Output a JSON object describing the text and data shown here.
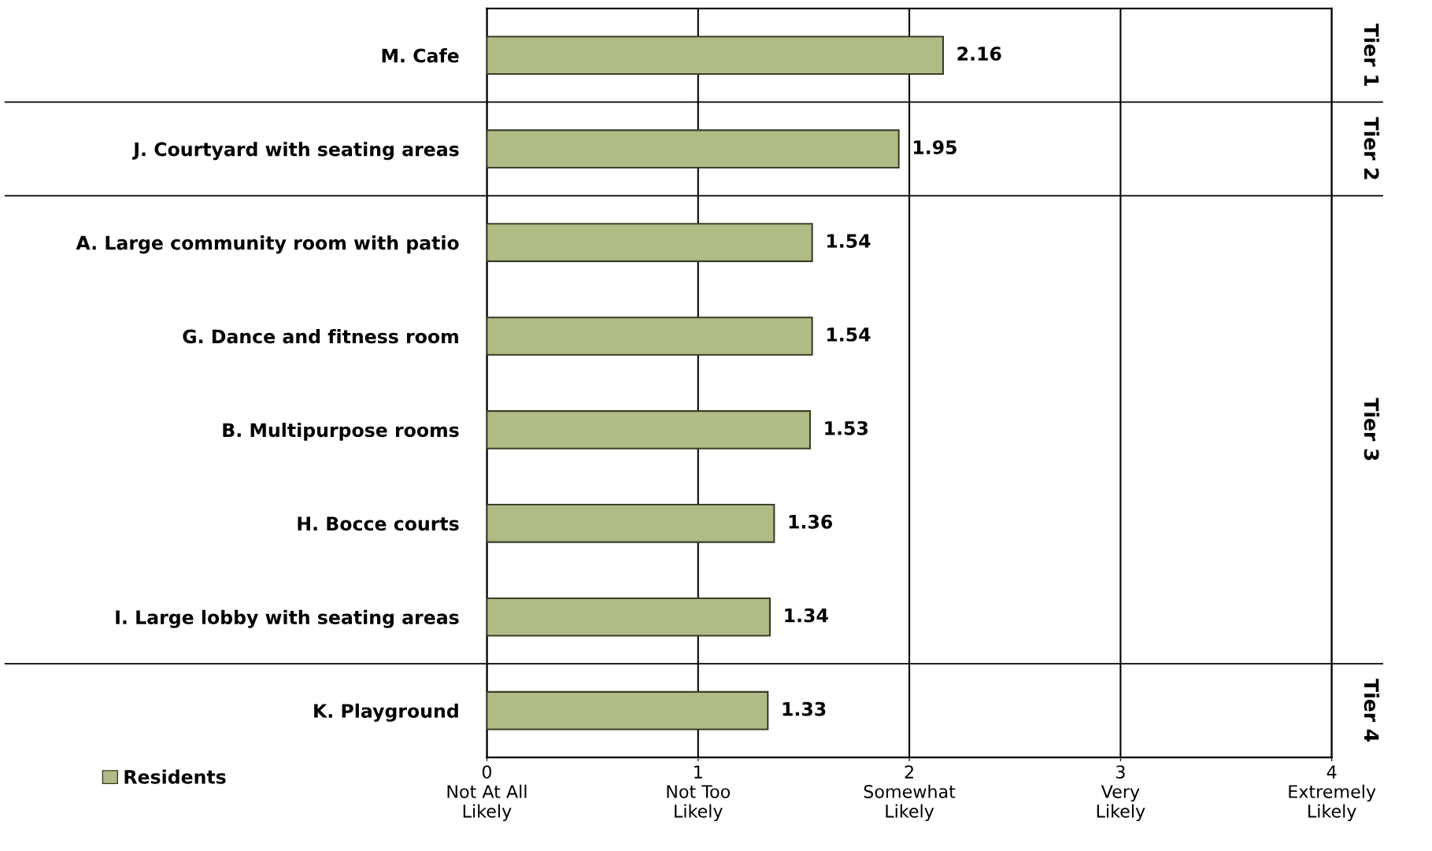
{
  "chart_data": {
    "type": "bar",
    "orientation": "horizontal",
    "categories": [
      "M. Cafe",
      "J. Courtyard with seating areas",
      "A. Large community room with patio",
      "G. Dance and fitness room",
      "B. Multipurpose rooms",
      "H. Bocce courts",
      "I. Large lobby with seating areas",
      "K. Playground"
    ],
    "series": [
      {
        "name": "Residents",
        "color": "#b0bc86",
        "values": [
          2.16,
          1.95,
          1.54,
          1.54,
          1.53,
          1.36,
          1.34,
          1.33
        ]
      }
    ],
    "xlim": [
      0,
      4
    ],
    "xticks": [
      {
        "value": 0,
        "label": "0\nNot At All\nLikely"
      },
      {
        "value": 1,
        "label": "1\nNot Too\nLikely"
      },
      {
        "value": 2,
        "label": "2\nSomewhat\nLikely"
      },
      {
        "value": 3,
        "label": "3\nVery\nLikely"
      },
      {
        "value": 4,
        "label": "4\nExtremely\nLikely"
      }
    ],
    "grid": "x",
    "legend": "bottom left",
    "data_labels": true,
    "annotations": [
      "Tier 1",
      "Tier 2",
      "Tier 3",
      "Tier 4"
    ]
  }
}
